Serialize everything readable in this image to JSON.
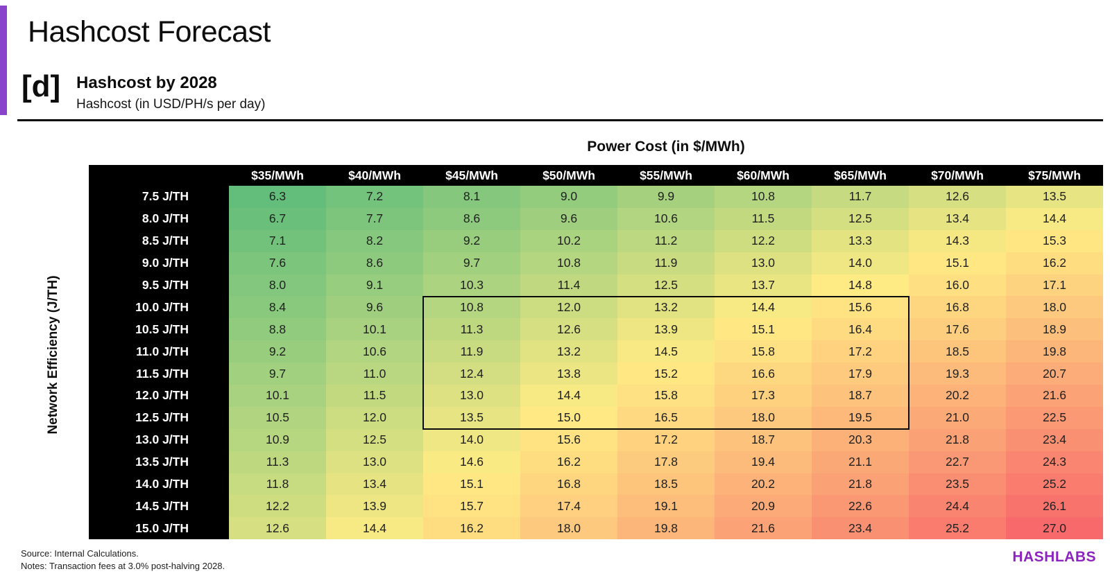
{
  "page": {
    "title": "Hashcost Forecast",
    "figure_label": "[d]",
    "figure_title": "Hashcost by 2028",
    "figure_subtitle": "Hashcost (in USD/PH/s per day)",
    "source_note": "Source: Internal Calculations.",
    "notes_note": "Notes: Transaction fees at 3.0% post-halving 2028.",
    "brand": "HASHLABS",
    "accent_color": "#8a44cb",
    "brand_color": "#8e24c0"
  },
  "chart_data": {
    "type": "heatmap",
    "title": "Hashcost by 2028",
    "subtitle": "Hashcost (in USD/PH/s per day)",
    "x_axis_label": "Power Cost (in $/MWh)",
    "y_axis_label": "Network Efficiency (J/TH)",
    "columns": [
      "$35/MWh",
      "$40/MWh",
      "$45/MWh",
      "$50/MWh",
      "$55/MWh",
      "$60/MWh",
      "$65/MWh",
      "$70/MWh",
      "$75/MWh"
    ],
    "rows": [
      "7.5 J/TH",
      "8.0 J/TH",
      "8.5 J/TH",
      "9.0 J/TH",
      "9.5 J/TH",
      "10.0 J/TH",
      "10.5 J/TH",
      "11.0 J/TH",
      "11.5 J/TH",
      "12.0 J/TH",
      "12.5 J/TH",
      "13.0 J/TH",
      "13.5 J/TH",
      "14.0 J/TH",
      "14.5 J/TH",
      "15.0 J/TH"
    ],
    "values": [
      [
        6.3,
        7.2,
        8.1,
        9.0,
        9.9,
        10.8,
        11.7,
        12.6,
        13.5
      ],
      [
        6.7,
        7.7,
        8.6,
        9.6,
        10.6,
        11.5,
        12.5,
        13.4,
        14.4
      ],
      [
        7.1,
        8.2,
        9.2,
        10.2,
        11.2,
        12.2,
        13.3,
        14.3,
        15.3
      ],
      [
        7.6,
        8.6,
        9.7,
        10.8,
        11.9,
        13.0,
        14.0,
        15.1,
        16.2
      ],
      [
        8.0,
        9.1,
        10.3,
        11.4,
        12.5,
        13.7,
        14.8,
        16.0,
        17.1
      ],
      [
        8.4,
        9.6,
        10.8,
        12.0,
        13.2,
        14.4,
        15.6,
        16.8,
        18.0
      ],
      [
        8.8,
        10.1,
        11.3,
        12.6,
        13.9,
        15.1,
        16.4,
        17.6,
        18.9
      ],
      [
        9.2,
        10.6,
        11.9,
        13.2,
        14.5,
        15.8,
        17.2,
        18.5,
        19.8
      ],
      [
        9.7,
        11.0,
        12.4,
        13.8,
        15.2,
        16.6,
        17.9,
        19.3,
        20.7
      ],
      [
        10.1,
        11.5,
        13.0,
        14.4,
        15.8,
        17.3,
        18.7,
        20.2,
        21.6
      ],
      [
        10.5,
        12.0,
        13.5,
        15.0,
        16.5,
        18.0,
        19.5,
        21.0,
        22.5
      ],
      [
        10.9,
        12.5,
        14.0,
        15.6,
        17.2,
        18.7,
        20.3,
        21.8,
        23.4
      ],
      [
        11.3,
        13.0,
        14.6,
        16.2,
        17.8,
        19.4,
        21.1,
        22.7,
        24.3
      ],
      [
        11.8,
        13.4,
        15.1,
        16.8,
        18.5,
        20.2,
        21.8,
        23.5,
        25.2
      ],
      [
        12.2,
        13.9,
        15.7,
        17.4,
        19.1,
        20.9,
        22.6,
        24.4,
        26.1
      ],
      [
        12.6,
        14.4,
        16.2,
        18.0,
        19.8,
        21.6,
        23.4,
        25.2,
        27.0
      ]
    ],
    "value_format": "1-decimal",
    "color_scale": {
      "min_value": 6.3,
      "mid_value": 14.85,
      "max_value": 27.0,
      "min_color": "#63BE7B",
      "mid_color": "#FFEB84",
      "max_color": "#F8696B"
    },
    "highlight_box": {
      "rows_from": "10.0 J/TH",
      "rows_to": "12.5 J/TH",
      "cols_from": "$45/MWh",
      "cols_to": "$65/MWh",
      "row_index_start": 5,
      "row_index_end": 10,
      "col_index_start": 2,
      "col_index_end": 6
    }
  }
}
